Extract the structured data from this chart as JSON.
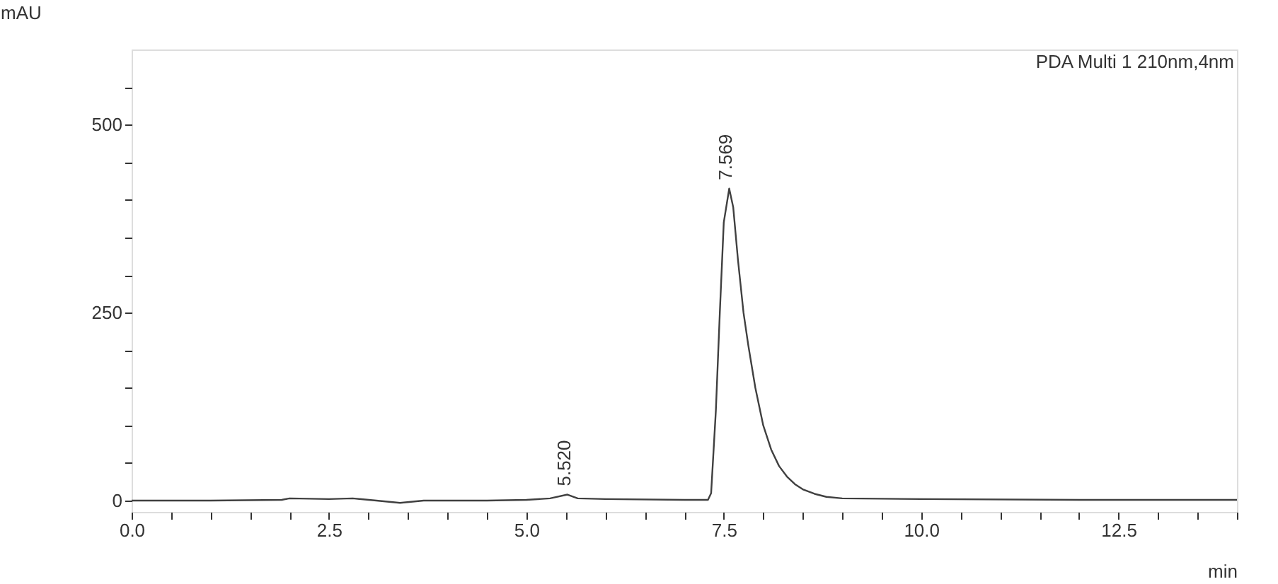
{
  "chart_data": {
    "type": "line",
    "xlabel": "min",
    "ylabel": "mAU",
    "x": [
      0,
      1,
      1.9,
      2.0,
      2.5,
      2.8,
      3.1,
      3.4,
      3.7,
      4.5,
      5.0,
      5.3,
      5.52,
      5.65,
      6.0,
      7.0,
      7.3,
      7.34,
      7.4,
      7.45,
      7.5,
      7.569,
      7.62,
      7.68,
      7.75,
      7.81,
      7.9,
      8.0,
      8.1,
      8.2,
      8.3,
      8.4,
      8.5,
      8.65,
      8.8,
      9.0,
      10.0,
      12.0,
      14.0
    ],
    "series": [
      {
        "color": "#404040",
        "values": [
          0,
          0,
          1,
          3,
          2,
          3,
          0,
          -3,
          0,
          0,
          1,
          3,
          8,
          3,
          2,
          1,
          1,
          10,
          120,
          250,
          370,
          415,
          390,
          320,
          250,
          207,
          150,
          100,
          68,
          46,
          32,
          22,
          15,
          9,
          5,
          3,
          2,
          1,
          1
        ]
      }
    ],
    "xlim": [
      0,
      14
    ],
    "ylim": [
      -15,
      600
    ],
    "xticks": [
      {
        "value": 0,
        "label": "0.0"
      },
      {
        "value": 0.5,
        "label": null
      },
      {
        "value": 1,
        "label": null
      },
      {
        "value": 1.5,
        "label": null
      },
      {
        "value": 2,
        "label": null
      },
      {
        "value": 2.5,
        "label": "2.5"
      },
      {
        "value": 3,
        "label": null
      },
      {
        "value": 3.5,
        "label": null
      },
      {
        "value": 4,
        "label": null
      },
      {
        "value": 4.5,
        "label": null
      },
      {
        "value": 5,
        "label": "5.0"
      },
      {
        "value": 5.5,
        "label": null
      },
      {
        "value": 6,
        "label": null
      },
      {
        "value": 6.5,
        "label": null
      },
      {
        "value": 7,
        "label": null
      },
      {
        "value": 7.5,
        "label": "7.5"
      },
      {
        "value": 8,
        "label": null
      },
      {
        "value": 8.5,
        "label": null
      },
      {
        "value": 9,
        "label": null
      },
      {
        "value": 9.5,
        "label": null
      },
      {
        "value": 10,
        "label": "10.0"
      },
      {
        "value": 10.5,
        "label": null
      },
      {
        "value": 11,
        "label": null
      },
      {
        "value": 11.5,
        "label": null
      },
      {
        "value": 12,
        "label": null
      },
      {
        "value": 12.5,
        "label": "12.5"
      },
      {
        "value": 13,
        "label": null
      },
      {
        "value": 13.5,
        "label": null
      },
      {
        "value": 14,
        "label": null
      }
    ],
    "yticks": [
      0,
      {
        "value": 50,
        "label": null
      },
      {
        "value": 100,
        "label": null
      },
      {
        "value": 150,
        "label": null
      },
      {
        "value": 200,
        "label": null
      },
      250,
      {
        "value": 300,
        "label": null
      },
      {
        "value": 350,
        "label": null
      },
      {
        "value": 400,
        "label": null
      },
      {
        "value": 450,
        "label": null
      },
      500,
      {
        "value": 550,
        "label": null
      }
    ],
    "annotations": [
      {
        "text": "5.520",
        "x": 5.52,
        "y": 8
      },
      {
        "text": "7.569",
        "x": 7.569,
        "y": 415
      },
      "PDA Multi 1 210nm,4nm"
    ],
    "grid": false,
    "marker": "none",
    "line_style": "solid"
  }
}
